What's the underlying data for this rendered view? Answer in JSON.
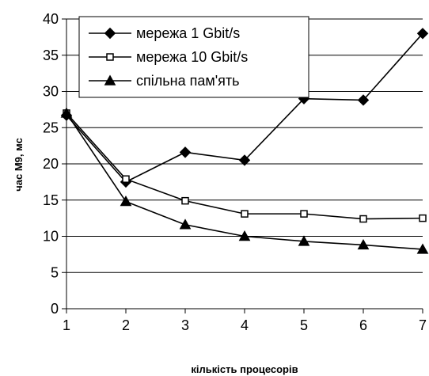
{
  "chart_data": {
    "type": "line",
    "title": "",
    "xlabel": "кількість процесорів",
    "ylabel": "час М9, мс",
    "x": [
      1,
      2,
      3,
      4,
      5,
      6,
      7
    ],
    "xlim": [
      1,
      7
    ],
    "ylim": [
      0,
      40
    ],
    "yticks": [
      0,
      5,
      10,
      15,
      20,
      25,
      30,
      35,
      40
    ],
    "grid": "horizontal",
    "legend_position": "top-left",
    "series": [
      {
        "name": "мережа 1 Gbit/s",
        "marker": "diamond",
        "values": [
          26.7,
          17.5,
          21.6,
          20.5,
          29.0,
          28.8,
          38.0
        ]
      },
      {
        "name": "мережа 10 Gbit/s",
        "marker": "square",
        "values": [
          27.0,
          17.9,
          14.9,
          13.1,
          13.1,
          12.4,
          12.5
        ]
      },
      {
        "name": "спільна пам'ять",
        "marker": "triangle",
        "values": [
          27.0,
          14.8,
          11.6,
          10.0,
          9.3,
          8.8,
          8.2
        ]
      }
    ],
    "colors": {
      "line": "#000000",
      "grid": "#000000",
      "background": "#ffffff"
    }
  }
}
